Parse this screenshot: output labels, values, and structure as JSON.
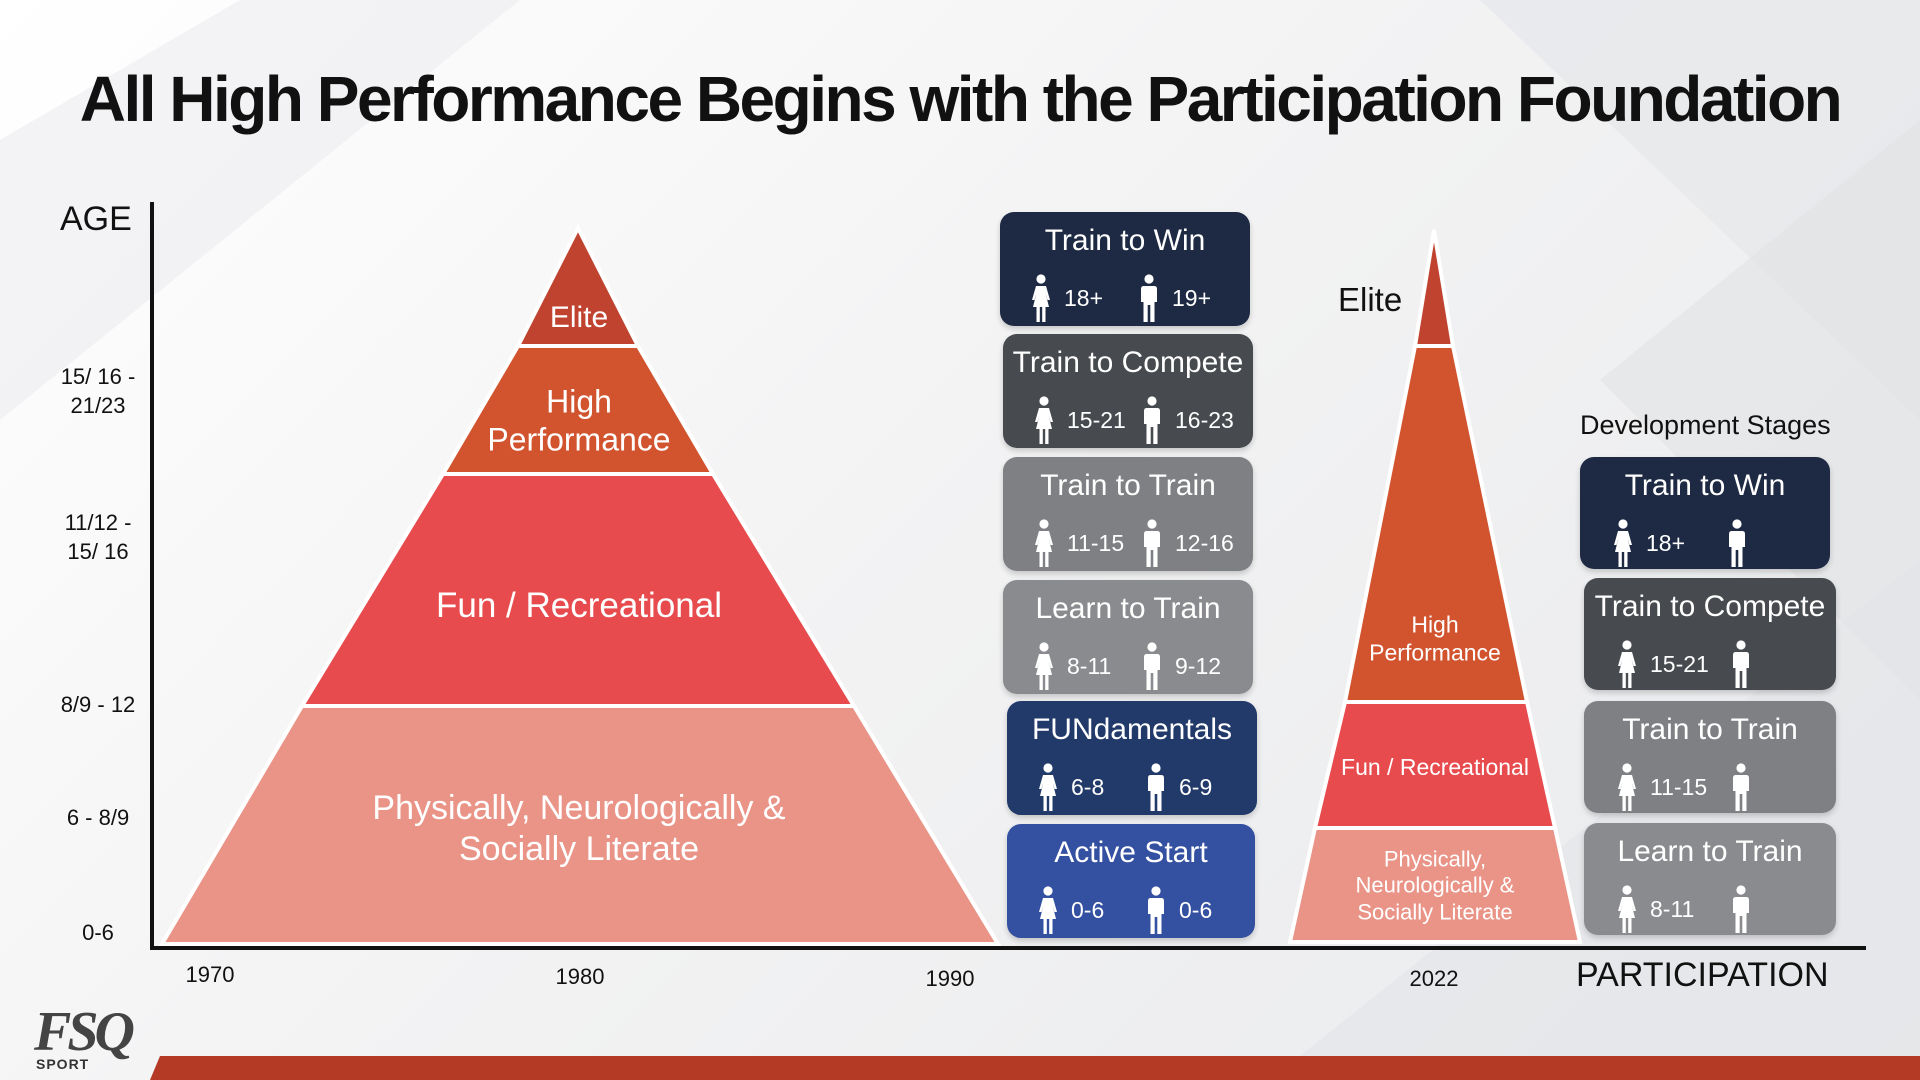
{
  "title": "All High Performance Begins with the Participation Foundation",
  "axis": {
    "y_label": "AGE",
    "x_label": "PARTICIPATION",
    "age_ticks": [
      "15/ 16 -\n21/23",
      "11/12 -\n15/ 16",
      "8/9 - 12",
      "6 - 8/9",
      "0-6"
    ],
    "year_ticks": [
      "1970",
      "1980",
      "1990",
      "2022"
    ]
  },
  "pyramid_1980": {
    "layers": [
      {
        "label": "Elite",
        "color": "#C0432F"
      },
      {
        "label": "High\nPerformance",
        "color": "#D2542E"
      },
      {
        "label": "Fun / Recreational",
        "color": "#E84B4D"
      },
      {
        "label": "Physically, Neurologically  &\nSocially Literate",
        "color": "#E99487"
      }
    ]
  },
  "pyramid_2022": {
    "elite_label": "Elite",
    "layers": [
      {
        "label": "",
        "color": "#C0432F"
      },
      {
        "label": "High\nPerformance",
        "color": "#D2542E"
      },
      {
        "label": "Fun / Recreational",
        "color": "#E84B4D"
      },
      {
        "label": "Physically,\nNeurologically &\nSocially Literate",
        "color": "#E99487"
      }
    ]
  },
  "stages_left": [
    {
      "label": "Train to Win",
      "female": "18+",
      "male": "19+",
      "color": "#1E2A44"
    },
    {
      "label": "Train to Compete",
      "female": "15-21",
      "male": "16-23",
      "color": "#474A4F"
    },
    {
      "label": "Train to Train",
      "female": "11-15",
      "male": "12-16",
      "color": "#7E8083"
    },
    {
      "label": "Learn to Train",
      "female": "8-11",
      "male": "9-12",
      "color": "#8A8B8E"
    },
    {
      "label": "FUNdamentals",
      "female": "6-8",
      "male": "6-9",
      "color": "#223A6A"
    },
    {
      "label": "Active Start",
      "female": "0-6",
      "male": "0-6",
      "color": "#3450A0"
    }
  ],
  "stages_right": {
    "heading": "Development Stages",
    "items": [
      {
        "label": "Train to Win",
        "female": "18+",
        "color": "#1E2A44"
      },
      {
        "label": "Train to Compete",
        "female": "15-21",
        "color": "#474A4F"
      },
      {
        "label": "Train to Train",
        "female": "11-15",
        "color": "#7E8083"
      },
      {
        "label": "Learn to Train",
        "female": "8-11",
        "color": "#8A8B8E"
      }
    ]
  },
  "logo": {
    "text": "FSQ",
    "sub": "SPORT"
  },
  "colors": {
    "bar": "#B53A26",
    "outline": "#ffffff"
  }
}
